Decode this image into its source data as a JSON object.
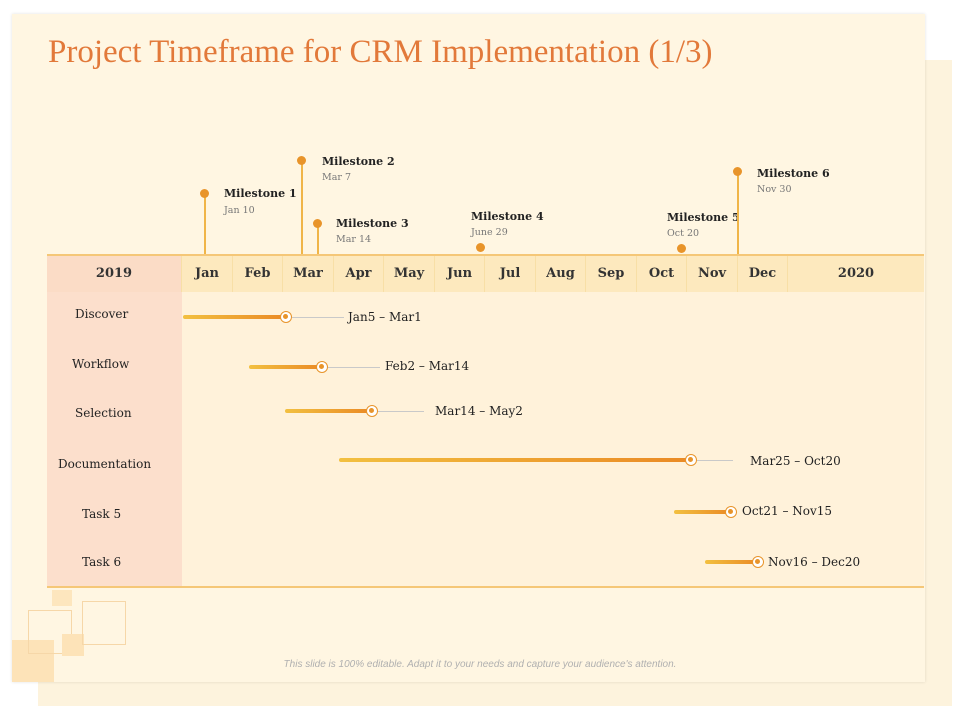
{
  "title": "Project Timeframe for CRM Implementation (1/3)",
  "header": {
    "start_year": "2019",
    "end_year": "2020",
    "months": [
      "Jan",
      "Feb",
      "Mar",
      "Apr",
      "May",
      "Jun",
      "Jul",
      "Aug",
      "Sep",
      "Oct",
      "Nov",
      "Dec"
    ]
  },
  "milestones": [
    {
      "label": "Milestone 1",
      "date": "Jan 10"
    },
    {
      "label": "Milestone 2",
      "date": "Mar 7"
    },
    {
      "label": "Milestone 3",
      "date": "Mar 14"
    },
    {
      "label": "Milestone 4",
      "date": "June 29"
    },
    {
      "label": "Milestone 5",
      "date": "Oct 20"
    },
    {
      "label": "Milestone 6",
      "date": "Nov 30"
    }
  ],
  "tasks": [
    {
      "name": "Discover",
      "range": "Jan5 – Mar1"
    },
    {
      "name": "Workflow",
      "range": "Feb2 – Mar14"
    },
    {
      "name": "Selection",
      "range": "Mar14 – May2"
    },
    {
      "name": "Documentation",
      "range": "Mar25 – Oct20"
    },
    {
      "name": "Task 5",
      "range": "Oct21 – Nov15"
    },
    {
      "name": "Task 6",
      "range": "Nov16 – Dec20"
    }
  ],
  "footer": "This slide is 100% editable. Adapt it to your needs and capture your audience's attention.",
  "colors": {
    "accent": "#e2793a",
    "bar_start": "#f2c040",
    "bar_end": "#ea8a25",
    "header_bg": "#fde9be",
    "label_bg": "#fcdfcc"
  }
}
